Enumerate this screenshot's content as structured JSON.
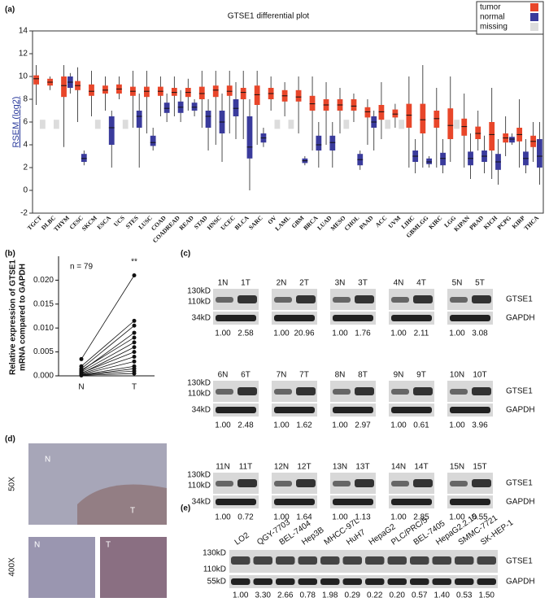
{
  "panel_labels": [
    "(a)",
    "(b)",
    "(c)",
    "(d)",
    "(e)"
  ],
  "chart_data": [
    {
      "type": "box",
      "title": "GTSE1 differential plot",
      "y_label": "RSEM (log2)",
      "categories": [
        "TGCT",
        "DLBC",
        "THYM",
        "CESC",
        "SKCM",
        "ESCA",
        "UCS",
        "STES",
        "LUSC",
        "COAD",
        "COADREAD",
        "READ",
        "STAD",
        "HNSC",
        "UCEC",
        "BLCA",
        "SARC",
        "OV",
        "LAML",
        "GBM",
        "BRCA",
        "LUAD",
        "MESO",
        "CHOL",
        "PAAD",
        "ACC",
        "UVM",
        "LIHC",
        "GBMLGG",
        "KIRC",
        "LGG",
        "KIPAN",
        "PRAD",
        "KICH",
        "PCPG",
        "KIRP",
        "THCA"
      ],
      "series": [
        {
          "name": "tumor",
          "color": "#e8462a",
          "values": [
            [
              7.5,
              9.3,
              9.8,
              10.1,
              11
            ],
            [
              8.8,
              9.2,
              9.5,
              9.8,
              10
            ],
            [
              3.8,
              8.2,
              9.2,
              10,
              11
            ],
            [
              6,
              8.8,
              9.2,
              9.6,
              10.8
            ],
            [
              6.5,
              8.3,
              8.7,
              9.3,
              10.5
            ],
            [
              7,
              8.5,
              8.8,
              9.2,
              10
            ],
            [
              8,
              8.5,
              8.9,
              9.3,
              10
            ],
            [
              5.5,
              8.3,
              8.7,
              9.1,
              10.5
            ],
            [
              5,
              8.2,
              8.7,
              9.1,
              10.5
            ],
            [
              6.5,
              8.3,
              8.7,
              9.1,
              10
            ],
            [
              6.5,
              8.3,
              8.6,
              9,
              10
            ],
            [
              7,
              8.2,
              8.6,
              9,
              9.8
            ],
            [
              5.5,
              8,
              8.5,
              9.1,
              10.5
            ],
            [
              4,
              8.2,
              8.8,
              9.2,
              10.5
            ],
            [
              5,
              8.3,
              8.7,
              9.2,
              10.5
            ],
            [
              4.5,
              8,
              8.6,
              9,
              10.5
            ],
            [
              4,
              7.5,
              8.4,
              9.2,
              10.5
            ],
            [
              7,
              8,
              8.5,
              9,
              10
            ],
            [
              6.5,
              7.8,
              8.3,
              8.8,
              9.5
            ],
            [
              5,
              7.8,
              8.2,
              8.8,
              10
            ],
            [
              3.5,
              7,
              7.6,
              8.3,
              10
            ],
            [
              4,
              7,
              7.5,
              8,
              9.5
            ],
            [
              5,
              7,
              7.5,
              8,
              9
            ],
            [
              6,
              7,
              7.4,
              8,
              8.5
            ],
            [
              4,
              6.4,
              6.9,
              7.3,
              8
            ],
            [
              4.5,
              6.2,
              6.9,
              7.5,
              9.5
            ],
            [
              5.5,
              6.4,
              6.7,
              7.1,
              7.6
            ],
            [
              2,
              5.5,
              6.6,
              7.6,
              10
            ],
            [
              2,
              5,
              6.2,
              7.6,
              11
            ],
            [
              2,
              5.5,
              6.3,
              7,
              9
            ],
            [
              2.5,
              4.5,
              5.7,
              7.2,
              10
            ],
            [
              2,
              4.8,
              5.6,
              6.3,
              8.5
            ],
            [
              3.5,
              4.5,
              5,
              5.6,
              7
            ],
            [
              1,
              3.5,
              4.9,
              6,
              9
            ],
            [
              3,
              4.2,
              4.6,
              5,
              6.5
            ],
            [
              2,
              4.3,
              4.9,
              5.5,
              8
            ],
            [
              2.5,
              3.8,
              4.3,
              4.8,
              6
            ]
          ]
        },
        {
          "name": "normal",
          "color": "#3a3b9c",
          "values": [
            null,
            null,
            [
              8.5,
              9,
              9.5,
              10,
              10.3
            ],
            [
              2.2,
              2.5,
              2.8,
              3.2,
              3.5
            ],
            null,
            [
              2,
              4,
              5.5,
              6.5,
              7
            ],
            null,
            [
              2,
              5.5,
              6.5,
              7,
              8.5
            ],
            [
              3.5,
              3.9,
              4.2,
              4.8,
              5.5
            ],
            [
              6,
              6.8,
              7.2,
              7.7,
              8.5
            ],
            [
              6,
              6.8,
              7.3,
              7.8,
              8.8
            ],
            [
              6.5,
              7,
              7.3,
              7.7,
              8
            ],
            [
              3.5,
              5.5,
              6.5,
              7,
              8
            ],
            [
              2.5,
              5,
              6,
              7,
              8.5
            ],
            [
              4.5,
              6.5,
              7.2,
              8,
              9.5
            ],
            [
              0,
              2.8,
              3.8,
              6.5,
              8
            ],
            [
              3.8,
              4.2,
              4.6,
              5,
              5.5
            ],
            null,
            null,
            [
              2.2,
              2.4,
              2.6,
              2.8,
              3
            ],
            [
              2,
              3.5,
              4,
              4.8,
              6
            ],
            [
              2,
              3.5,
              4.2,
              4.8,
              6
            ],
            null,
            [
              1.8,
              2.2,
              2.7,
              3.2,
              3.5
            ],
            [
              3.5,
              5.5,
              6,
              6.5,
              7
            ],
            null,
            null,
            [
              1.5,
              2.5,
              3,
              3.5,
              4.5
            ],
            [
              2,
              2.3,
              2.5,
              2.8,
              3
            ],
            [
              1.5,
              2.2,
              2.8,
              3.3,
              4.5
            ],
            null,
            [
              1,
              2.2,
              2.8,
              3.4,
              5
            ],
            [
              1.5,
              2.5,
              3,
              3.5,
              4.8
            ],
            [
              0.5,
              1.8,
              2.5,
              3.2,
              4.5
            ],
            [
              4,
              4.2,
              4.5,
              4.7,
              5
            ],
            [
              1.5,
              2.2,
              2.8,
              3.4,
              4.5
            ],
            [
              0.5,
              2,
              3,
              4.5,
              6
            ]
          ]
        }
      ],
      "missing": {
        "name": "missing",
        "color": "#dcdcdc"
      },
      "ylim": [
        -2,
        14
      ],
      "yticks": [
        -2,
        0,
        2,
        4,
        6,
        8,
        10,
        12,
        14
      ]
    },
    {
      "type": "paired",
      "categories": [
        "N",
        "T"
      ],
      "y_label": [
        "Relative expression of GTSE1",
        "mRNA compared to GAPDH"
      ],
      "annotations": [
        "n = 79",
        "**"
      ],
      "values": [
        [
          0.0035,
          0.021
        ],
        [
          0.002,
          0.0115
        ],
        [
          0.0015,
          0.0105
        ],
        [
          0.001,
          0.009
        ],
        [
          0.0012,
          0.008
        ],
        [
          0.0008,
          0.007
        ],
        [
          0.0005,
          0.006
        ],
        [
          0.0006,
          0.005
        ],
        [
          0.0004,
          0.004
        ],
        [
          0.0003,
          0.003
        ],
        [
          0.0002,
          0.002
        ],
        [
          0.0001,
          0.0015
        ],
        [
          0.0002,
          0.001
        ],
        [
          0.0001,
          0.0005
        ]
      ],
      "ylim": [
        0,
        0.025
      ],
      "yticks": [
        {
          "value": 0,
          "label": "0.000"
        },
        {
          "value": 0.005,
          "label": "0.005"
        },
        {
          "value": 0.01,
          "label": "0.010"
        },
        {
          "value": 0.015,
          "label": "0.015"
        },
        {
          "value": 0.02,
          "label": "0.020"
        }
      ]
    }
  ],
  "blots_c": {
    "size_markers": [
      "130kD",
      "110kD",
      "34kD"
    ],
    "proteins": [
      "GTSE1",
      "GAPDH"
    ],
    "pairs": [
      {
        "lanes": [
          "1N",
          "1T"
        ],
        "ratios": [
          "1.00",
          "2.58"
        ]
      },
      {
        "lanes": [
          "2N",
          "2T"
        ],
        "ratios": [
          "1.00",
          "20.96"
        ]
      },
      {
        "lanes": [
          "3N",
          "3T"
        ],
        "ratios": [
          "1.00",
          "1.76"
        ]
      },
      {
        "lanes": [
          "4N",
          "4T"
        ],
        "ratios": [
          "1.00",
          "2.11"
        ]
      },
      {
        "lanes": [
          "5N",
          "5T"
        ],
        "ratios": [
          "1.00",
          "3.08"
        ]
      },
      {
        "lanes": [
          "6N",
          "6T"
        ],
        "ratios": [
          "1.00",
          "2.48"
        ]
      },
      {
        "lanes": [
          "7N",
          "7T"
        ],
        "ratios": [
          "1.00",
          "1.62"
        ]
      },
      {
        "lanes": [
          "8N",
          "8T"
        ],
        "ratios": [
          "1.00",
          "2.97"
        ]
      },
      {
        "lanes": [
          "9N",
          "9T"
        ],
        "ratios": [
          "1.00",
          "0.61"
        ]
      },
      {
        "lanes": [
          "10N",
          "10T"
        ],
        "ratios": [
          "1.00",
          "3.96"
        ]
      },
      {
        "lanes": [
          "11N",
          "11T"
        ],
        "ratios": [
          "1.00",
          "0.72"
        ]
      },
      {
        "lanes": [
          "12N",
          "12T"
        ],
        "ratios": [
          "1.00",
          "1.64"
        ]
      },
      {
        "lanes": [
          "13N",
          "13T"
        ],
        "ratios": [
          "1.00",
          "1.13"
        ]
      },
      {
        "lanes": [
          "14N",
          "14T"
        ],
        "ratios": [
          "1.00",
          "2.85"
        ]
      },
      {
        "lanes": [
          "15N",
          "15T"
        ],
        "ratios": [
          "1.00",
          "0.55"
        ]
      }
    ]
  },
  "images_d": {
    "magnifications": [
      "50X",
      "400X"
    ],
    "regions": [
      "N",
      "T"
    ]
  },
  "blots_e": {
    "size_markers": [
      "130kD",
      "110kD",
      "55kD"
    ],
    "proteins": [
      "GTSE1",
      "GAPDH"
    ],
    "lanes": [
      "LO2",
      "QGY-7703",
      "BEL-7404",
      "Hep3B",
      "MHCC-97L",
      "HuH7",
      "HepaG2",
      "PLC/PRC/5",
      "BEL-7405",
      "HepaG2.2.15",
      "SMMC-7721",
      "SK-HEP-1"
    ],
    "ratios": [
      "1.00",
      "3.30",
      "2.66",
      "0.78",
      "1.98",
      "0.29",
      "0.22",
      "0.20",
      "0.57",
      "1.40",
      "0.53",
      "1.50"
    ]
  }
}
